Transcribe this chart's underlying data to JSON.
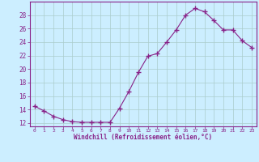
{
  "x": [
    0,
    1,
    2,
    3,
    4,
    5,
    6,
    7,
    8,
    9,
    10,
    11,
    12,
    13,
    14,
    15,
    16,
    17,
    18,
    19,
    20,
    21,
    22,
    23
  ],
  "y": [
    14.5,
    13.8,
    13.0,
    12.5,
    12.2,
    12.1,
    12.1,
    12.1,
    12.1,
    14.2,
    16.7,
    19.5,
    21.9,
    22.3,
    24.0,
    25.8,
    28.0,
    29.0,
    28.5,
    27.2,
    25.8,
    25.8,
    24.2,
    23.2
  ],
  "line_color": "#882288",
  "marker": "+",
  "marker_size": 4,
  "bg_color": "#cceeff",
  "grid_color": "#aacccc",
  "xlabel": "Windchill (Refroidissement éolien,°C)",
  "ylim": [
    11.5,
    30.0
  ],
  "xlim": [
    -0.5,
    23.5
  ],
  "yticks": [
    12,
    14,
    16,
    18,
    20,
    22,
    24,
    26,
    28
  ],
  "xticks": [
    0,
    1,
    2,
    3,
    4,
    5,
    6,
    7,
    8,
    9,
    10,
    11,
    12,
    13,
    14,
    15,
    16,
    17,
    18,
    19,
    20,
    21,
    22,
    23
  ],
  "line_color2": "#882288",
  "tick_label_color": "#882288",
  "xlabel_color": "#882288",
  "spine_color": "#882288"
}
